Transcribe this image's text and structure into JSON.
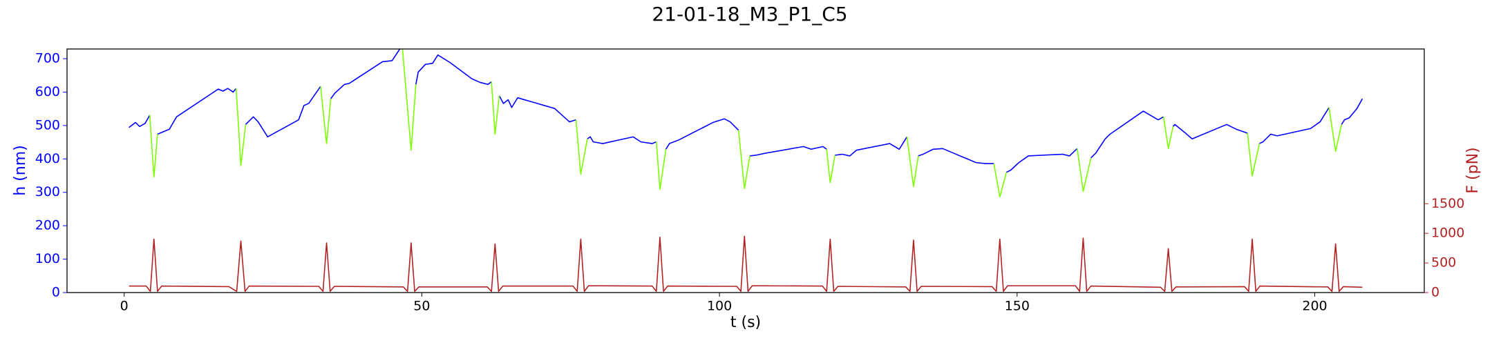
{
  "chart_data": {
    "type": "line",
    "title": "21-01-18_M3_P1_C5",
    "x_label": "t (s)",
    "y_label": "h (nm)",
    "y2_label": "F (pN)",
    "xlim": [
      -9.6,
      218.4
    ],
    "xticks": [
      0,
      50,
      100,
      150,
      200
    ],
    "ylim": [
      0,
      729
    ],
    "yticks": [
      0,
      100,
      200,
      300,
      400,
      500,
      600,
      700
    ],
    "y2lim": [
      0,
      4113
    ],
    "y2ticks": [
      0,
      500,
      1000,
      1500
    ],
    "series": [
      {
        "color": "#0000ff",
        "x": [
          0.8,
          1.9,
          2.6,
          3.5,
          4.3,
          5.0,
          5.6,
          6.8,
          7.6,
          8.8,
          15.8,
          16.6,
          17.4,
          18.3,
          18.8,
          19.6,
          20.4,
          21.7,
          22.5,
          24.1,
          29.3,
          30.2,
          31,
          32.2,
          33,
          34,
          34.7,
          35.4,
          37,
          37.8,
          43.4,
          45,
          46.3,
          48.2,
          49,
          49.4,
          50.6,
          51.8,
          52.7,
          54.7,
          58.4,
          59.8,
          61.1,
          61.7,
          62.3,
          63,
          63.7,
          64.5,
          65.1,
          66.1,
          72.3,
          74.8,
          75.9,
          76.7,
          77.8,
          78.3,
          78.8,
          80.4,
          85.5,
          86.8,
          88.7,
          89.4,
          90,
          91,
          91.6,
          93.2,
          98.9,
          100.8,
          101.8,
          103.2,
          104.2,
          105.1,
          106.1,
          107.7,
          114.1,
          115.4,
          117.4,
          118,
          118.6,
          119.4,
          120.6,
          121.9,
          123,
          128.6,
          130.2,
          131.5,
          132.6,
          133.4,
          134.2,
          135.9,
          137.5,
          143.1,
          144.7,
          146.1,
          147.1,
          148.2,
          148.9,
          150.3,
          151.9,
          157.6,
          158.8,
          160.1,
          161.1,
          162.4,
          163.2,
          164.8,
          165.6,
          171.2,
          173.7,
          174.6,
          175.4,
          176.2,
          176.5,
          178.1,
          179.4,
          185.2,
          186.8,
          188.7,
          189.5,
          190.7,
          191.3,
          192.6,
          193.7,
          199.3,
          200.9,
          202.4,
          203.5,
          204.5,
          205,
          205.8,
          207.1,
          208
        ],
        "values": [
          494,
          509,
          497,
          506,
          531,
          null,
          474,
          483,
          489,
          526,
          609,
          603,
          611,
          600,
          611,
          null,
          503,
          526,
          511,
          466,
          517,
          560,
          566,
          597,
          617,
          null,
          580,
          597,
          623,
          626,
          691,
          694,
          729,
          null,
          623,
          660,
          683,
          686,
          711,
          689,
          640,
          629,
          623,
          631,
          null,
          589,
          566,
          577,
          554,
          583,
          551,
          511,
          517,
          null,
          460,
          466,
          451,
          446,
          466,
          451,
          446,
          451,
          null,
          429,
          446,
          457,
          509,
          520,
          511,
          486,
          null,
          409,
          411,
          417,
          437,
          429,
          437,
          429,
          null,
          411,
          414,
          409,
          426,
          446,
          429,
          466,
          null,
          409,
          414,
          429,
          431,
          389,
          386,
          386,
          null,
          360,
          366,
          389,
          409,
          414,
          409,
          431,
          null,
          403,
          417,
          460,
          474,
          543,
          517,
          526,
          null,
          497,
          503,
          480,
          460,
          503,
          489,
          477,
          null,
          446,
          451,
          474,
          469,
          491,
          511,
          554,
          null,
          503,
          517,
          523,
          551,
          580
        ]
      },
      {
        "color": "#7cfc00",
        "x": [
          4.3,
          4.6,
          5.0,
          5.6,
          12,
          18.8,
          19.2,
          19.6,
          20.4,
          27,
          33,
          33.5,
          34,
          34.7,
          40,
          46.3,
          46.6,
          48.2,
          49,
          55,
          61.7,
          62.3,
          63,
          70,
          75.9,
          76.7,
          77.8,
          84,
          89.4,
          90,
          91,
          97,
          103.2,
          104.2,
          105.1,
          111,
          118,
          118.6,
          119.4,
          125,
          131.5,
          132.6,
          133.4,
          140,
          146.1,
          147.1,
          148.2,
          154,
          160.1,
          161.1,
          162.4,
          168,
          174.6,
          175.4,
          176.2,
          182,
          188.7,
          189.5,
          190.7,
          196,
          202.4,
          203.5,
          204.5
        ],
        "values": [
          531,
          450,
          346,
          474,
          null,
          611,
          500,
          380,
          503,
          null,
          617,
          530,
          446,
          580,
          null,
          729,
          760,
          426,
          623,
          null,
          631,
          474,
          589,
          null,
          517,
          354,
          460,
          null,
          451,
          309,
          429,
          null,
          486,
          311,
          409,
          null,
          429,
          329,
          411,
          null,
          466,
          317,
          409,
          null,
          386,
          286,
          360,
          null,
          431,
          303,
          403,
          null,
          526,
          431,
          497,
          null,
          477,
          349,
          446,
          null,
          554,
          423,
          503
        ]
      },
      {
        "color": "#b22222",
        "axis": "y2",
        "x": [
          0.8,
          3.7,
          4.4,
          5.0,
          5.6,
          6.3,
          17.6,
          18.9,
          19.6,
          20.3,
          21,
          32.7,
          33.4,
          34,
          34.6,
          35.3,
          46.9,
          47.6,
          48.2,
          48.8,
          49.5,
          61,
          61.7,
          62.3,
          62.9,
          63.6,
          75.4,
          76.1,
          76.7,
          77.3,
          78,
          88.7,
          89.4,
          90,
          90.6,
          91.3,
          102.9,
          103.6,
          104.2,
          104.8,
          105.5,
          117.3,
          118,
          118.6,
          119.2,
          119.9,
          131.3,
          132,
          132.6,
          133.2,
          133.9,
          145.8,
          146.5,
          147.1,
          147.7,
          148.4,
          159.8,
          160.5,
          161.1,
          161.7,
          162.4,
          174.1,
          174.8,
          175.4,
          176,
          176.7,
          188.2,
          188.9,
          189.5,
          190.1,
          190.8,
          202.2,
          202.9,
          203.5,
          204.1,
          204.8,
          208
        ],
        "values": [
          110,
          110,
          20,
          903,
          20,
          110,
          100,
          20,
          871,
          20,
          110,
          105,
          20,
          839,
          20,
          105,
          95,
          20,
          839,
          20,
          95,
          95,
          20,
          823,
          20,
          110,
          110,
          20,
          903,
          20,
          115,
          110,
          20,
          935,
          20,
          110,
          105,
          20,
          952,
          20,
          115,
          110,
          20,
          903,
          20,
          105,
          95,
          20,
          887,
          20,
          105,
          100,
          20,
          903,
          20,
          115,
          115,
          20,
          919,
          20,
          110,
          90,
          20,
          742,
          20,
          95,
          100,
          20,
          903,
          20,
          110,
          95,
          20,
          823,
          20,
          100,
          90
        ]
      }
    ]
  }
}
